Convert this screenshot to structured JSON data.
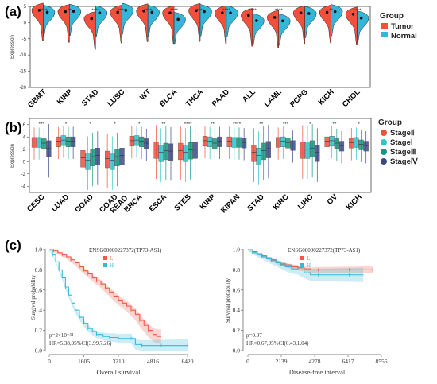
{
  "colors": {
    "tumor": "#f2503a",
    "normal": "#34b6d8",
    "stage2": "#f04f3d",
    "stage1": "#2ec3c9",
    "stage3": "#14977d",
    "stage4": "#3a4a88",
    "survL": "#f05a48",
    "survH": "#35b8d8"
  },
  "panel_labels": [
    "(a)",
    "(b)",
    "(c)"
  ],
  "chart_data": [
    {
      "type": "violin",
      "ylabel": "Expression",
      "ylim": [
        -20,
        5
      ],
      "yticks": [
        5,
        0,
        -5,
        -10,
        -15,
        -20
      ],
      "legend": {
        "title": "Group",
        "entries": [
          "Tumor",
          "Normal"
        ],
        "placement": "right"
      },
      "categories": [
        "GBMT",
        "KIRP",
        "STAD",
        "LUSC",
        "WT",
        "BLCA",
        "THCA",
        "PAAD",
        "ALL",
        "LAML",
        "PCPG",
        "KICH",
        "CHOL"
      ],
      "significance": [
        "****",
        "**",
        "****",
        "****",
        "****",
        "****",
        "****",
        "****",
        "****",
        "****",
        "-",
        "**",
        "****"
      ],
      "tumor_median": [
        3.8,
        3.4,
        1.2,
        3.2,
        3.6,
        3.0,
        3.7,
        3.0,
        2.2,
        1.6,
        3.0,
        3.2,
        2.6
      ],
      "normal_median": [
        3.2,
        3.5,
        3.0,
        3.8,
        3.2,
        1.0,
        3.4,
        3.0,
        0.6,
        0.5,
        2.8,
        3.4,
        1.4
      ]
    },
    {
      "type": "boxplot",
      "ylabel": "Expression",
      "ylim": [
        -5,
        7
      ],
      "yticks": [
        6,
        4,
        2,
        0,
        -2,
        -4
      ],
      "legend": {
        "title": "Group",
        "entries": [
          "StageⅡ",
          "StageⅠ",
          "StageⅢ",
          "StageⅣ"
        ],
        "placement": "right"
      },
      "categories": [
        "CESC",
        "LUAD",
        "COAD",
        "COAD READ",
        "BRCA",
        "ESCA",
        "STES",
        "KIRP",
        "KIPAN",
        "STAD",
        "KIRC",
        "LIHC",
        "OV",
        "KICH"
      ],
      "significance": [
        "***",
        "*",
        "*",
        "*",
        "*",
        "**",
        "****",
        "**",
        "****",
        "**",
        "***",
        "*",
        "**",
        "*"
      ],
      "medians": [
        [
          3.2,
          3.2,
          3.0,
          2.2
        ],
        [
          3.3,
          3.5,
          3.3,
          3.3
        ],
        [
          0.6,
          0.2,
          0.8,
          1.0
        ],
        [
          0.5,
          0.2,
          0.8,
          1.0
        ],
        [
          3.4,
          3.5,
          3.3,
          3.0
        ],
        [
          2.0,
          1.5,
          1.8,
          1.7
        ],
        [
          1.8,
          1.5,
          1.9,
          2.0
        ],
        [
          3.4,
          3.3,
          3.0,
          3.3
        ],
        [
          3.3,
          3.2,
          3.2,
          3.1
        ],
        [
          1.5,
          1.0,
          1.8,
          2.1
        ],
        [
          3.2,
          3.3,
          3.1,
          2.7
        ],
        [
          2.0,
          2.0,
          2.2,
          1.5
        ],
        [
          3.3,
          3.4,
          3.0,
          2.6
        ],
        [
          3.1,
          3.2,
          2.8,
          2.6
        ]
      ]
    },
    {
      "type": "line",
      "title": "ENSG00000227372(TP73-AS1)",
      "xlabel": "Overall survival",
      "ylabel": "Survival probability",
      "xlim": [
        0,
        6420
      ],
      "xticks": [
        0,
        1605,
        3210,
        4816,
        6420
      ],
      "ylim": [
        0,
        1
      ],
      "yticks": [
        0.0,
        0.2,
        0.4,
        0.6,
        0.8,
        1.0
      ],
      "legend": [
        "L",
        "H"
      ],
      "annotation": [
        "p=2×10⁻³⁴",
        "HR=5.38,95%CI(3.99,7.26)"
      ],
      "series": [
        {
          "name": "L",
          "x": [
            0,
            200,
            400,
            600,
            800,
            1000,
            1200,
            1400,
            1605,
            1800,
            2000,
            2200,
            2400,
            2600,
            2800,
            3000,
            3210,
            3400,
            3600,
            3800,
            4000,
            4200,
            4400,
            4600,
            4816,
            5000,
            5200
          ],
          "y": [
            1.0,
            0.99,
            0.97,
            0.95,
            0.93,
            0.9,
            0.87,
            0.83,
            0.79,
            0.76,
            0.72,
            0.69,
            0.66,
            0.62,
            0.58,
            0.54,
            0.5,
            0.47,
            0.44,
            0.4,
            0.36,
            0.3,
            0.25,
            0.2,
            0.16,
            0.14,
            0.14
          ]
        },
        {
          "name": "H",
          "x": [
            0,
            150,
            300,
            450,
            600,
            750,
            900,
            1050,
            1200,
            1400,
            1605,
            1800,
            2000,
            2200,
            2500,
            2800,
            3000,
            3210,
            3500,
            3800,
            4000,
            4300,
            4816,
            5200,
            5500,
            6420
          ],
          "y": [
            1.0,
            0.95,
            0.88,
            0.8,
            0.72,
            0.63,
            0.55,
            0.47,
            0.4,
            0.33,
            0.27,
            0.22,
            0.19,
            0.16,
            0.14,
            0.13,
            0.13,
            0.12,
            0.12,
            0.12,
            0.06,
            0.05,
            0.05,
            0.05,
            0.05,
            0.05
          ]
        }
      ]
    },
    {
      "type": "line",
      "title": "ENSG00000227372(TP73-AS1)",
      "xlabel": "Disease-free interval",
      "ylabel": "Survival probability",
      "xlim": [
        0,
        8556
      ],
      "xticks": [
        0,
        2139,
        4278,
        6417,
        8556
      ],
      "ylim": [
        0,
        1
      ],
      "yticks": [
        0.0,
        0.2,
        0.4,
        0.6,
        0.8,
        1.0
      ],
      "legend": [
        "L",
        "H"
      ],
      "annotation": [
        "p=0.07",
        "HR=0.67,95%CI(0.43,1.04)"
      ],
      "series": [
        {
          "name": "L",
          "x": [
            0,
            300,
            600,
            900,
            1200,
            1500,
            1800,
            2100,
            2400,
            2800,
            3200,
            3600,
            4000,
            4500,
            5500,
            6500,
            7500,
            8000
          ],
          "y": [
            1.0,
            0.98,
            0.96,
            0.94,
            0.92,
            0.9,
            0.88,
            0.86,
            0.85,
            0.83,
            0.82,
            0.81,
            0.8,
            0.8,
            0.8,
            0.8,
            0.8,
            0.8
          ]
        },
        {
          "name": "H",
          "x": [
            0,
            300,
            600,
            900,
            1200,
            1500,
            1800,
            2100,
            2400,
            2800,
            3200,
            3600,
            4000,
            4500,
            5500,
            6500,
            7400
          ],
          "y": [
            1.0,
            0.97,
            0.95,
            0.93,
            0.91,
            0.89,
            0.87,
            0.85,
            0.83,
            0.81,
            0.8,
            0.77,
            0.75,
            0.75,
            0.75,
            0.75,
            0.75
          ]
        }
      ]
    }
  ]
}
